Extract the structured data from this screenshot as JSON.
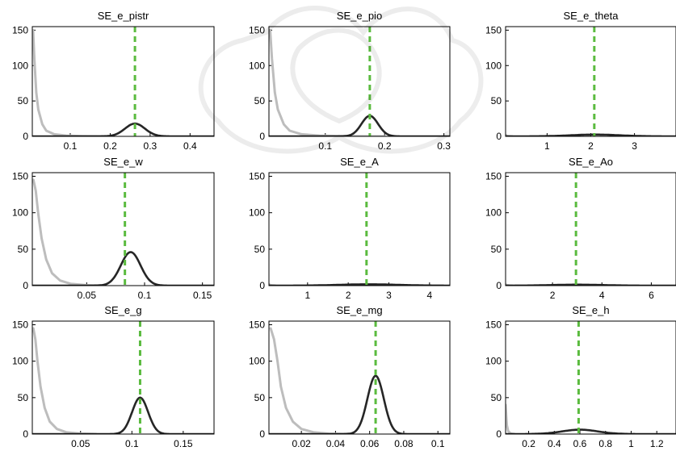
{
  "figure": {
    "prior_color": "#bdbdbd",
    "posterior_color": "#262626",
    "mode_color": "#5bbb3f"
  },
  "chart_data": [
    {
      "type": "line",
      "title": "SE_e_pistr",
      "xlim": [
        0.005,
        0.46
      ],
      "ylim": [
        0,
        155
      ],
      "xticks": [
        0.1,
        0.2,
        0.3,
        0.4
      ],
      "xtick_labels": [
        "0.1",
        "0.2",
        "0.3",
        "0.4"
      ],
      "yticks": [
        0,
        50,
        100,
        150
      ],
      "ytick_labels": [
        "0",
        "50",
        "100",
        "150"
      ],
      "prior": {
        "name": "prior",
        "x": [
          0.007,
          0.01,
          0.015,
          0.02,
          0.03,
          0.04,
          0.06,
          0.09,
          0.13,
          0.2
        ],
        "y": [
          150,
          110,
          62,
          38,
          17,
          8,
          3,
          1,
          0.3,
          0
        ]
      },
      "posterior": {
        "name": "posterior",
        "mean": 0.262,
        "sd": 0.025,
        "peak": 18
      },
      "mode_line": 0.262
    },
    {
      "type": "line",
      "title": "SE_e_pio",
      "xlim": [
        0.005,
        0.31
      ],
      "ylim": [
        0,
        155
      ],
      "xticks": [
        0.1,
        0.2,
        0.3
      ],
      "xtick_labels": [
        "0.1",
        "0.2",
        "0.3"
      ],
      "yticks": [
        0,
        50,
        100,
        150
      ],
      "ytick_labels": [
        "0",
        "50",
        "100",
        "150"
      ],
      "prior": {
        "name": "prior",
        "x": [
          0.007,
          0.01,
          0.015,
          0.02,
          0.03,
          0.04,
          0.06,
          0.09,
          0.13,
          0.2
        ],
        "y": [
          150,
          110,
          62,
          38,
          17,
          8,
          3,
          1,
          0.3,
          0
        ]
      },
      "posterior": {
        "name": "posterior",
        "mean": 0.175,
        "sd": 0.014,
        "peak": 29
      },
      "mode_line": 0.175
    },
    {
      "type": "line",
      "title": "SE_e_theta",
      "xlim": [
        0.05,
        3.95
      ],
      "ylim": [
        0,
        155
      ],
      "xticks": [
        1,
        2,
        3
      ],
      "xtick_labels": [
        "1",
        "2",
        "3"
      ],
      "yticks": [
        0,
        50,
        100,
        150
      ],
      "ytick_labels": [
        "0",
        "50",
        "100",
        "150"
      ],
      "prior": {
        "name": "prior",
        "x": [
          0.05,
          0.08,
          0.12,
          0.2
        ],
        "y": [
          2,
          0.8,
          0.2,
          0
        ]
      },
      "posterior": {
        "name": "posterior",
        "mean": 2.1,
        "sd": 0.55,
        "peak": 2.5
      },
      "mode_line": 2.08
    },
    {
      "type": "line",
      "title": "SE_e_w",
      "xlim": [
        0.003,
        0.16
      ],
      "ylim": [
        0,
        155
      ],
      "xticks": [
        0.05,
        0.1,
        0.15
      ],
      "xtick_labels": [
        "0.05",
        "0.1",
        "0.15"
      ],
      "yticks": [
        0,
        50,
        100,
        150
      ],
      "ytick_labels": [
        "0",
        "50",
        "100",
        "150"
      ],
      "prior": {
        "name": "prior",
        "x": [
          0.004,
          0.006,
          0.008,
          0.011,
          0.015,
          0.02,
          0.027,
          0.036,
          0.05,
          0.065
        ],
        "y": [
          145,
          130,
          100,
          65,
          36,
          17,
          7,
          2.5,
          0.6,
          0
        ]
      },
      "posterior": {
        "name": "posterior",
        "mean": 0.088,
        "sd": 0.0085,
        "peak": 46
      },
      "mode_line": 0.083
    },
    {
      "type": "line",
      "title": "SE_e_A",
      "xlim": [
        0.05,
        4.5
      ],
      "ylim": [
        0,
        155
      ],
      "xticks": [
        1,
        2,
        3,
        4
      ],
      "xtick_labels": [
        "1",
        "2",
        "3",
        "4"
      ],
      "yticks": [
        0,
        50,
        100,
        150
      ],
      "ytick_labels": [
        "0",
        "50",
        "100",
        "150"
      ],
      "prior": {
        "name": "prior",
        "x": [
          0.05,
          0.08,
          0.12,
          0.2
        ],
        "y": [
          2,
          0.8,
          0.2,
          0
        ]
      },
      "posterior": {
        "name": "posterior",
        "mean": 2.5,
        "sd": 0.7,
        "peak": 1.8
      },
      "mode_line": 2.45
    },
    {
      "type": "line",
      "title": "SE_e_Ao",
      "xlim": [
        0.1,
        7.0
      ],
      "ylim": [
        0,
        155
      ],
      "xticks": [
        2,
        4,
        6
      ],
      "xtick_labels": [
        "2",
        "4",
        "6"
      ],
      "yticks": [
        0,
        50,
        100,
        150
      ],
      "ytick_labels": [
        "0",
        "50",
        "100",
        "150"
      ],
      "prior": {
        "name": "prior",
        "x": [
          0.1,
          0.15,
          0.25,
          0.4
        ],
        "y": [
          1.5,
          0.7,
          0.2,
          0
        ]
      },
      "posterior": {
        "name": "posterior",
        "mean": 3.0,
        "sd": 1.0,
        "peak": 1.3
      },
      "mode_line": 2.95
    },
    {
      "type": "line",
      "title": "SE_e_g",
      "xlim": [
        0.003,
        0.18
      ],
      "ylim": [
        0,
        155
      ],
      "xticks": [
        0.05,
        0.1,
        0.15
      ],
      "xtick_labels": [
        "0.05",
        "0.1",
        "0.15"
      ],
      "yticks": [
        0,
        50,
        100,
        150
      ],
      "ytick_labels": [
        "0",
        "50",
        "100",
        "150"
      ],
      "prior": {
        "name": "prior",
        "x": [
          0.004,
          0.006,
          0.008,
          0.011,
          0.015,
          0.02,
          0.027,
          0.036,
          0.05,
          0.065
        ],
        "y": [
          145,
          130,
          100,
          65,
          36,
          17,
          7,
          2.5,
          0.6,
          0
        ]
      },
      "posterior": {
        "name": "posterior",
        "mean": 0.108,
        "sd": 0.0078,
        "peak": 50
      },
      "mode_line": 0.108
    },
    {
      "type": "line",
      "title": "SE_e_mg",
      "xlim": [
        0.001,
        0.107
      ],
      "ylim": [
        0,
        155
      ],
      "xticks": [
        0.02,
        0.04,
        0.06,
        0.08,
        0.1
      ],
      "xtick_labels": [
        "0.02",
        "0.04",
        "0.06",
        "0.08",
        "0.1"
      ],
      "yticks": [
        0,
        50,
        100,
        150
      ],
      "ytick_labels": [
        "0",
        "50",
        "100",
        "150"
      ],
      "prior": {
        "name": "prior",
        "x": [
          0.002,
          0.004,
          0.006,
          0.008,
          0.011,
          0.015,
          0.02,
          0.027,
          0.036,
          0.05
        ],
        "y": [
          145,
          130,
          100,
          65,
          36,
          17,
          7,
          2.5,
          0.6,
          0
        ]
      },
      "posterior": {
        "name": "posterior",
        "mean": 0.0635,
        "sd": 0.0048,
        "peak": 80
      },
      "mode_line": 0.0635
    },
    {
      "type": "line",
      "title": "SE_e_h",
      "xlim": [
        0.02,
        1.35
      ],
      "ylim": [
        0,
        155
      ],
      "xticks": [
        0.2,
        0.4,
        0.6,
        0.8,
        1,
        1.2
      ],
      "xtick_labels": [
        "0.2",
        "0.4",
        "0.6",
        "0.8",
        "1",
        "1.2"
      ],
      "yticks": [
        0,
        50,
        100,
        150
      ],
      "ytick_labels": [
        "0",
        "50",
        "100",
        "150"
      ],
      "prior": {
        "name": "prior",
        "x": [
          0.02,
          0.025,
          0.03,
          0.04,
          0.06,
          0.09
        ],
        "y": [
          40,
          25,
          12,
          4,
          0.8,
          0
        ]
      },
      "posterior": {
        "name": "posterior",
        "mean": 0.6,
        "sd": 0.14,
        "peak": 6
      },
      "mode_line": 0.59
    }
  ]
}
